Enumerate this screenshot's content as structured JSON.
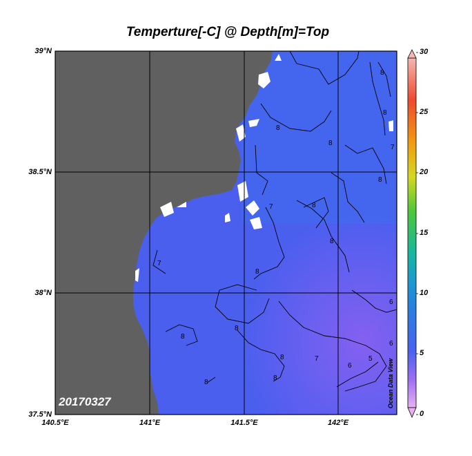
{
  "title": "Temperture[-C] @ Depth[m]=Top",
  "date_label": "20170327",
  "watermark": "Ocean Data View",
  "axes": {
    "lat_labels": [
      "39°N",
      "38.5°N",
      "38°N",
      "37.5°N"
    ],
    "lon_labels": [
      "140.5°E",
      "141°E",
      "141.5°E",
      "142°E"
    ]
  },
  "colorbar": {
    "labels": [
      "30",
      "25",
      "20",
      "15",
      "10",
      "5",
      "0"
    ],
    "colors": [
      "#f2a6a6",
      "#ee4433",
      "#f08c10",
      "#e8d818",
      "#5ccc2e",
      "#10b59a",
      "#1a86d4",
      "#4b6df0",
      "#7d63f2",
      "#dfa0ee"
    ]
  },
  "map": {
    "land_color": "#606060",
    "water_color": "#4a5ff0",
    "contour_labels": [
      "8",
      "8",
      "8",
      "8",
      "7",
      "8",
      "8",
      "7",
      "8",
      "7",
      "8",
      "8",
      "8",
      "8",
      "7",
      "6",
      "5",
      "6",
      "8",
      "8",
      "6"
    ]
  }
}
